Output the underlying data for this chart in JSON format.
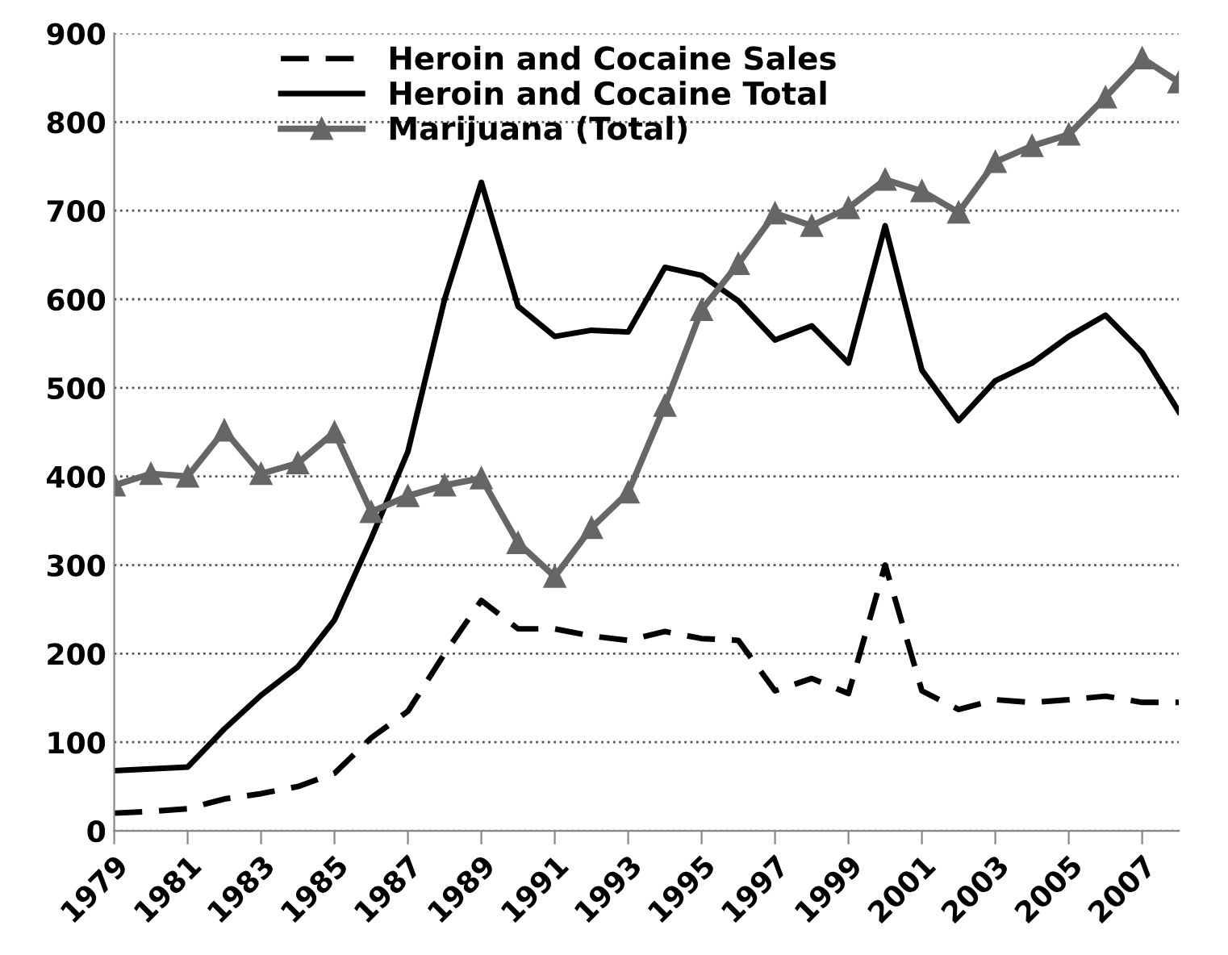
{
  "chart_data": {
    "type": "line",
    "categories": [
      "1979",
      null,
      "1981",
      null,
      "1983",
      null,
      "1985",
      null,
      "1987",
      null,
      "1989",
      null,
      "1991",
      null,
      "1993",
      null,
      "1995",
      null,
      "1997",
      null,
      "1999",
      null,
      "2001",
      null,
      "2003",
      null,
      "2005",
      null,
      "2007",
      null
    ],
    "series": [
      {
        "name": "Heroin and Cocaine Sales",
        "color": "#000000",
        "line_style": "dashed",
        "marker": "none",
        "values": [
          20,
          22,
          25,
          36,
          42,
          50,
          65,
          105,
          135,
          200,
          260,
          228,
          228,
          220,
          215,
          225,
          217,
          215,
          158,
          172,
          155,
          300,
          158,
          137,
          148,
          145,
          148,
          152,
          145,
          145
        ]
      },
      {
        "name": "Heroin and Cocaine Total",
        "color": "#000000",
        "line_style": "solid",
        "marker": "none",
        "values": [
          68,
          70,
          72,
          115,
          153,
          185,
          238,
          330,
          428,
          600,
          732,
          592,
          558,
          565,
          563,
          636,
          627,
          598,
          554,
          570,
          528,
          683,
          520,
          463,
          508,
          528,
          558,
          582,
          540,
          473
        ]
      },
      {
        "name": "Marijuana (Total)",
        "color": "#666666",
        "line_style": "solid",
        "marker": "triangle",
        "values": [
          390,
          403,
          400,
          452,
          403,
          415,
          450,
          360,
          378,
          390,
          398,
          325,
          287,
          342,
          382,
          480,
          588,
          640,
          697,
          683,
          703,
          735,
          722,
          698,
          755,
          773,
          786,
          828,
          872,
          845
        ]
      }
    ],
    "ylim": [
      0,
      900
    ],
    "yticks": [
      0,
      100,
      200,
      300,
      400,
      500,
      600,
      700,
      800,
      900
    ],
    "grid": "y",
    "legend": "top left"
  }
}
